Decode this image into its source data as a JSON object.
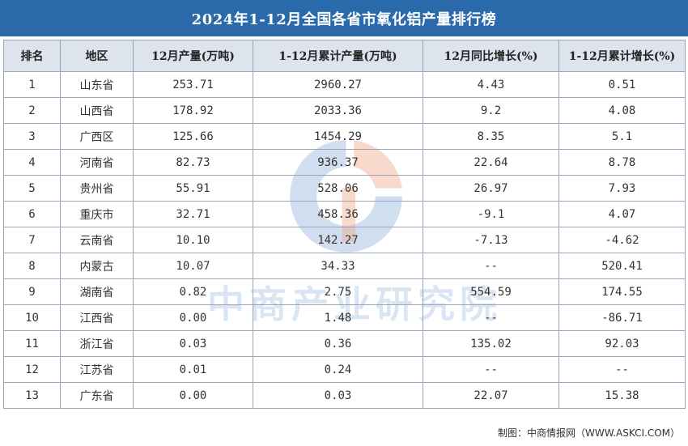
{
  "title": "2024年1-12月全国各省市氧化铝产量排行榜",
  "columns": [
    "排名",
    "地区",
    "12月产量(万吨)",
    "1-12月累计产量(万吨)",
    "12月同比增长(%)",
    "1-12月累计增长(%)"
  ],
  "rows": [
    {
      "rank": "1",
      "region": "山东省",
      "dec_output": "253.71",
      "cum_output": "2960.27",
      "dec_yoy": "4.43",
      "cum_growth": "0.51"
    },
    {
      "rank": "2",
      "region": "山西省",
      "dec_output": "178.92",
      "cum_output": "2033.36",
      "dec_yoy": "9.2",
      "cum_growth": "4.08"
    },
    {
      "rank": "3",
      "region": "广西区",
      "dec_output": "125.66",
      "cum_output": "1454.29",
      "dec_yoy": "8.35",
      "cum_growth": "5.1"
    },
    {
      "rank": "4",
      "region": "河南省",
      "dec_output": "82.73",
      "cum_output": "936.37",
      "dec_yoy": "22.64",
      "cum_growth": "8.78"
    },
    {
      "rank": "5",
      "region": "贵州省",
      "dec_output": "55.91",
      "cum_output": "528.06",
      "dec_yoy": "26.97",
      "cum_growth": "7.93"
    },
    {
      "rank": "6",
      "region": "重庆市",
      "dec_output": "32.71",
      "cum_output": "458.36",
      "dec_yoy": "-9.1",
      "cum_growth": "4.07"
    },
    {
      "rank": "7",
      "region": "云南省",
      "dec_output": "10.10",
      "cum_output": "142.27",
      "dec_yoy": "-7.13",
      "cum_growth": "-4.62"
    },
    {
      "rank": "8",
      "region": "内蒙古",
      "dec_output": "10.07",
      "cum_output": "34.33",
      "dec_yoy": "--",
      "cum_growth": "520.41"
    },
    {
      "rank": "9",
      "region": "湖南省",
      "dec_output": "0.82",
      "cum_output": "2.75",
      "dec_yoy": "554.59",
      "cum_growth": "174.55"
    },
    {
      "rank": "10",
      "region": "江西省",
      "dec_output": "0.00",
      "cum_output": "1.48",
      "dec_yoy": "--",
      "cum_growth": "-86.71"
    },
    {
      "rank": "11",
      "region": "浙江省",
      "dec_output": "0.03",
      "cum_output": "0.36",
      "dec_yoy": "135.02",
      "cum_growth": "92.03"
    },
    {
      "rank": "12",
      "region": "江苏省",
      "dec_output": "0.01",
      "cum_output": "0.24",
      "dec_yoy": "--",
      "cum_growth": "--"
    },
    {
      "rank": "13",
      "region": "广东省",
      "dec_output": "0.00",
      "cum_output": "0.03",
      "dec_yoy": "22.07",
      "cum_growth": "15.38"
    }
  ],
  "watermark": "中商产业研究院",
  "footer": "制图：中商情报网（WWW.ASKCI.COM）",
  "colors": {
    "title_bg": "#2a6aab",
    "header_bg": "#dde4ee",
    "border": "#9aa6b8"
  }
}
